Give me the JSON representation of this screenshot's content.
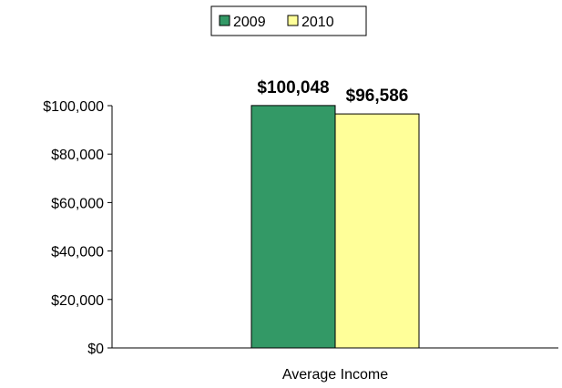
{
  "chart_data": {
    "type": "bar",
    "categories": [
      "Average Income"
    ],
    "series": [
      {
        "name": "2009",
        "values": [
          100048
        ],
        "color": "#339966",
        "data_label": "$100,048"
      },
      {
        "name": "2010",
        "values": [
          96586
        ],
        "color": "#FFFF99",
        "data_label": "$96,586"
      }
    ],
    "ylim": [
      0,
      100000
    ],
    "yticks": [
      0,
      20000,
      40000,
      60000,
      80000,
      100000
    ],
    "ytick_labels": [
      "$0",
      "$20,000",
      "$40,000",
      "$60,000",
      "$80,000",
      "$100,000"
    ],
    "grid": false,
    "legend_position": "top-center"
  }
}
